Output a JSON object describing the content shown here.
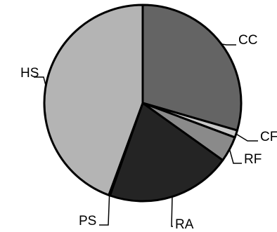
{
  "chart_data": {
    "type": "pie",
    "title": "",
    "categories": [
      "CC",
      "CF",
      "RF",
      "RA",
      "PS",
      "HS"
    ],
    "values": [
      29.5,
      1.2,
      4.2,
      20.5,
      0.2,
      44.4
    ],
    "colors": [
      "#646464",
      "#c8c8c8",
      "#8a8a8a",
      "#242424",
      "#d0d0d0",
      "#b4b4b4"
    ],
    "start_angle_deg": 0,
    "direction": "clockwise",
    "legend": "none",
    "labels": [
      {
        "text": "CC"
      },
      {
        "text": "CF"
      },
      {
        "text": "RF"
      },
      {
        "text": "RA"
      },
      {
        "text": "PS"
      },
      {
        "text": "HS"
      }
    ]
  }
}
